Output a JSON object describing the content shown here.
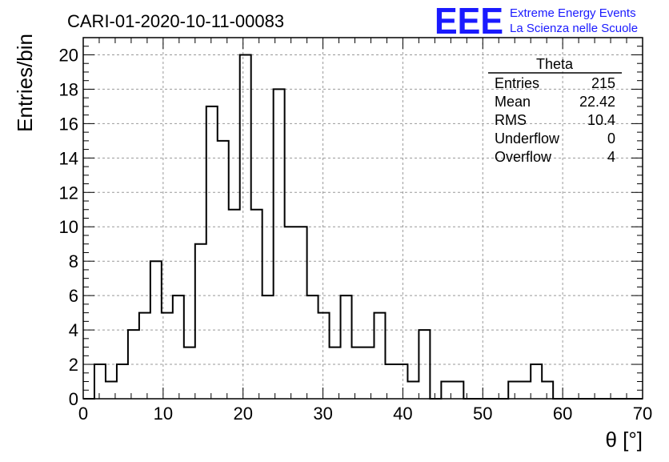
{
  "chart_data": {
    "type": "bar",
    "title": "CARI-01-2020-10-11-00083",
    "xlabel": "θ [°]",
    "ylabel": "Entries/bin",
    "xlim": [
      0,
      70
    ],
    "ylim": [
      0,
      21
    ],
    "x_ticks": [
      0,
      10,
      20,
      30,
      40,
      50,
      60,
      70
    ],
    "y_ticks": [
      0,
      2,
      4,
      6,
      8,
      10,
      12,
      14,
      16,
      18,
      20
    ],
    "grid": true,
    "bin_edges_start": 0,
    "bin_width": 1.4,
    "values": [
      0,
      2,
      1,
      2,
      4,
      5,
      8,
      5,
      6,
      3,
      9,
      17,
      15,
      11,
      20,
      11,
      6,
      18,
      10,
      10,
      6,
      5,
      3,
      6,
      3,
      3,
      5,
      2,
      2,
      1,
      4,
      0,
      1,
      1,
      0,
      0,
      0,
      0,
      1,
      1,
      2,
      1,
      0,
      0,
      0,
      0,
      0,
      0,
      0,
      0
    ]
  },
  "stats_box": {
    "title": "Theta",
    "rows": [
      {
        "label": "Entries",
        "value": "215"
      },
      {
        "label": "Mean",
        "value": "22.42"
      },
      {
        "label": "RMS",
        "value": "10.4"
      },
      {
        "label": "Underflow",
        "value": "0"
      },
      {
        "label": "Overflow",
        "value": "4"
      }
    ]
  },
  "logo": {
    "mark": "EEE",
    "line1": "Extreme Energy Events",
    "line2": "La Scienza nelle Scuole",
    "color": "#1a1aff"
  }
}
